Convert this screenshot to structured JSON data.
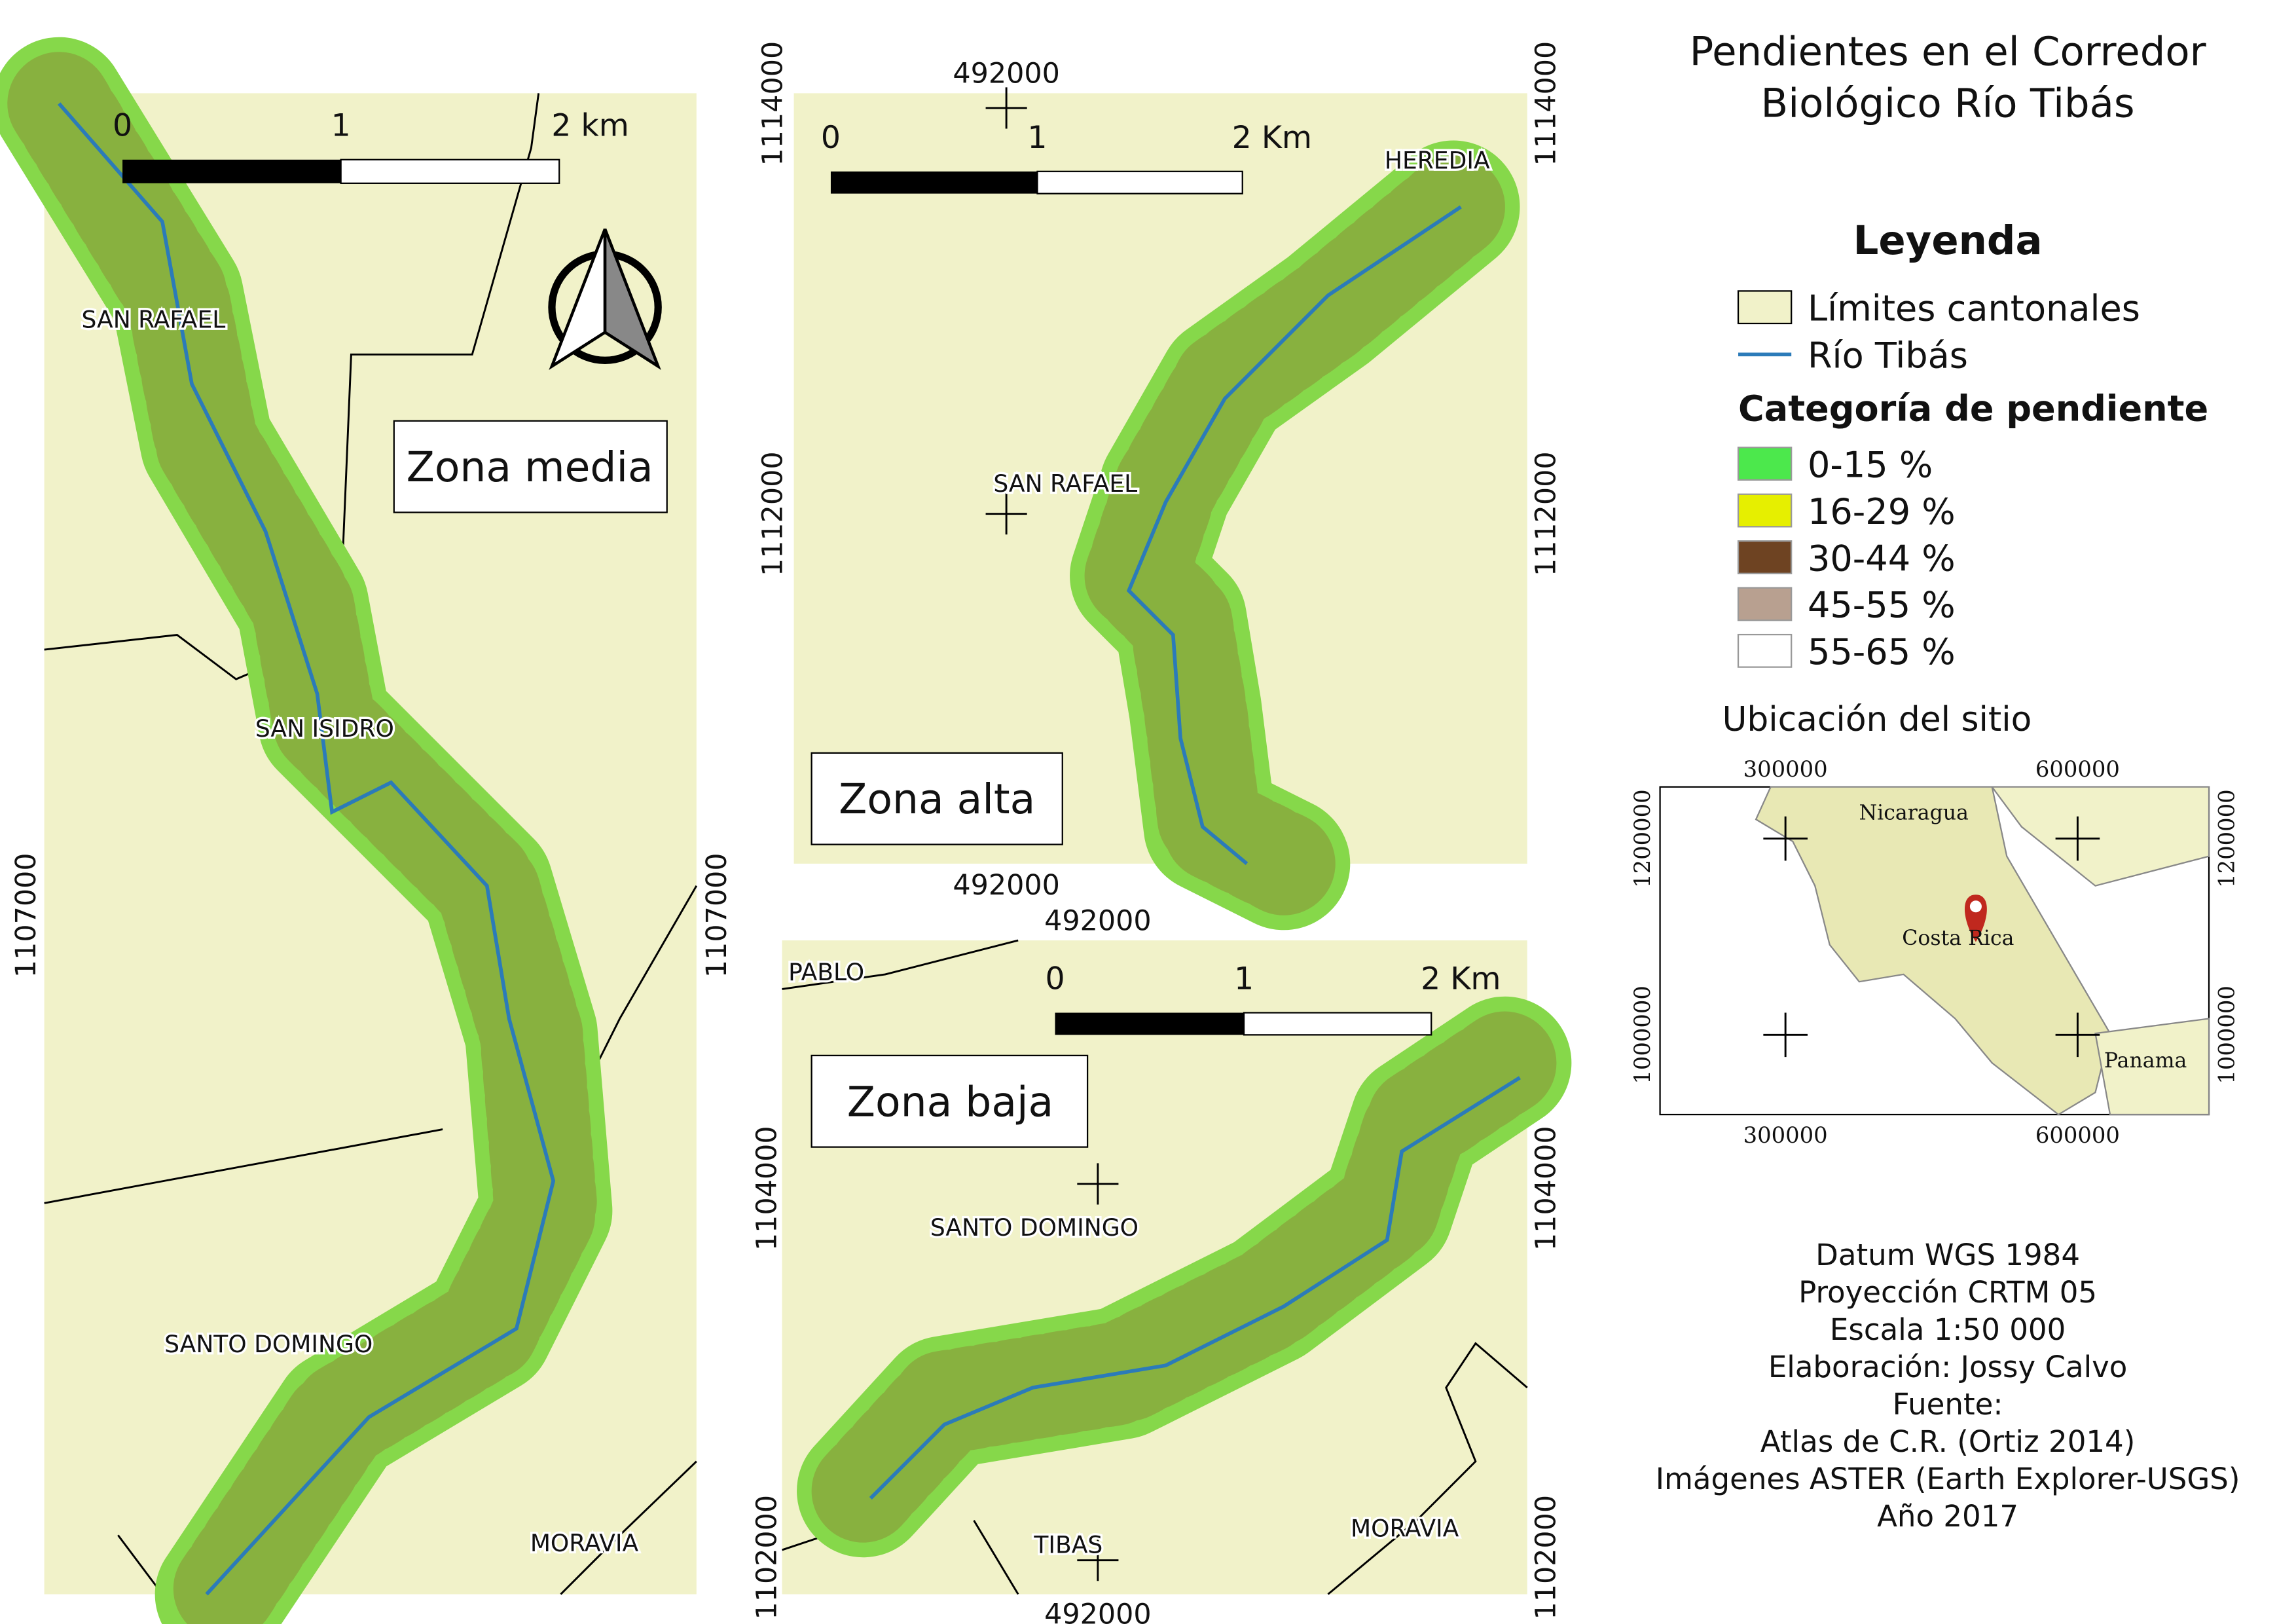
{
  "title": [
    "Pendientes en el Corredor",
    "Biológico Río Tibás"
  ],
  "legend": {
    "heading": "Leyenda",
    "items": [
      {
        "label": "Límites cantonales",
        "color": "#f1f2c9"
      },
      {
        "label": "Río Tibás",
        "color": "#2b7bb9"
      }
    ],
    "slope_heading": "Categoría de pendiente",
    "slope_classes": [
      {
        "label": "0-15 %",
        "color": "#4ce84c"
      },
      {
        "label": "16-29 %",
        "color": "#e6ef00"
      },
      {
        "label": "30-44 %",
        "color": "#6e4322"
      },
      {
        "label": "45-55 %",
        "color": "#b8a090"
      },
      {
        "label": "55-65 %",
        "color": "#ffffff"
      }
    ]
  },
  "panels": [
    {
      "title": "Zona media",
      "scale_labels": [
        "0",
        "1",
        "2 km"
      ],
      "places": [
        "SAN RAFAEL",
        "SAN ISIDRO",
        "SANTO DOMINGO",
        "MORAVIA"
      ],
      "y_labels_left": [
        "1107000"
      ],
      "y_labels_right": [
        "1107000"
      ]
    },
    {
      "title": "Zona alta",
      "scale_labels": [
        "0",
        "1",
        "2 Km"
      ],
      "places": [
        "HEREDIA",
        "SAN RAFAEL"
      ],
      "x_labels_top": [
        "492000"
      ],
      "x_labels_bottom": [
        "492000"
      ],
      "y_labels_left": [
        "1114000",
        "1112000"
      ],
      "y_labels_right": [
        "1114000",
        "1112000"
      ]
    },
    {
      "title": "Zona baja",
      "scale_labels": [
        "0",
        "1",
        "2 Km"
      ],
      "places": [
        "PABLO",
        "SANTO DOMINGO",
        "TIBAS",
        "MORAVIA"
      ],
      "x_labels_top": [
        "492000"
      ],
      "x_labels_bottom": [
        "492000"
      ],
      "y_labels_left": [
        "1104000",
        "1102000"
      ],
      "y_labels_right": [
        "1104000",
        "1102000"
      ]
    }
  ],
  "inset": {
    "title": "Ubicación del sitio",
    "x_labels": [
      "300000",
      "600000"
    ],
    "y_labels": [
      "1200000",
      "1000000"
    ],
    "countries": [
      "Nicaragua",
      "Costa Rica",
      "Panama"
    ]
  },
  "notes": [
    "Datum WGS 1984",
    "Proyección CRTM 05",
    "Escala 1:50 000",
    "Elaboración: Jossy Calvo",
    "Fuente:",
    "Atlas de C.R. (Ortiz 2014)",
    "Imágenes ASTER (Earth Explorer-USGS)",
    "Año 2017"
  ]
}
